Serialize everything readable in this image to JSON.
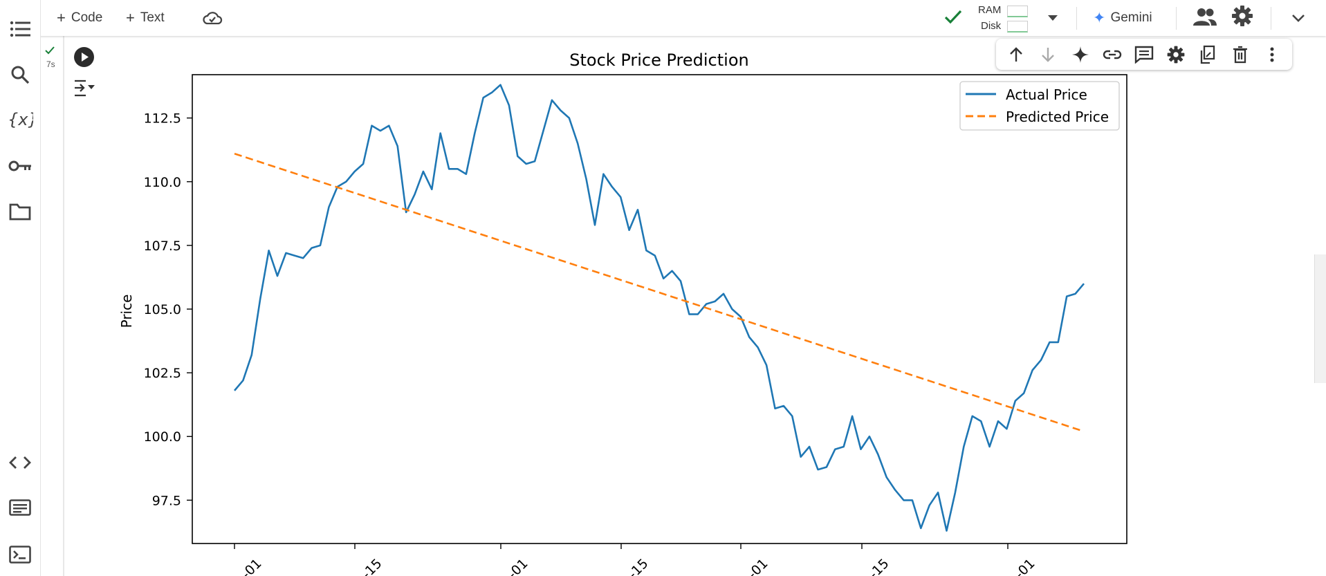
{
  "toolbar": {
    "add_code_label": "Code",
    "add_text_label": "Text",
    "ram_label": "RAM",
    "disk_label": "Disk",
    "gemini_label": "Gemini"
  },
  "cell": {
    "run_time": "7s"
  },
  "icons": {
    "rail": [
      "toc-icon",
      "search-icon",
      "variables-icon",
      "key-icon",
      "folder-icon",
      "code-snippets-icon",
      "command-palette-icon",
      "terminal-icon"
    ],
    "cell_toolbar": [
      "arrow-up-icon",
      "arrow-down-icon",
      "sparkle-icon",
      "link-icon",
      "comment-icon",
      "gear-icon",
      "mirror-cell-icon",
      "trash-icon",
      "more-vert-icon"
    ]
  },
  "colors": {
    "accent_check": "#188038",
    "actual_line": "#1f77b4",
    "predicted_line": "#ff7f0e",
    "gemini": "#4285f4"
  },
  "chart_data": {
    "type": "line",
    "title": "Stock Price Prediction",
    "xlabel": "",
    "ylabel": "Price",
    "ylim": [
      95.8,
      114.2
    ],
    "yticks": [
      "97.5",
      "100.0",
      "102.5",
      "105.0",
      "107.5",
      "110.0",
      "112.5"
    ],
    "xticks": [
      "-01",
      "-15",
      "-01",
      "-15",
      "-01",
      "-15",
      "-01"
    ],
    "legend_position": "upper right",
    "series": [
      {
        "name": "Actual Price",
        "style": "solid",
        "values": [
          101.8,
          102.2,
          103.2,
          105.4,
          107.3,
          106.3,
          107.2,
          107.1,
          107.0,
          107.4,
          107.5,
          109.0,
          109.8,
          110.0,
          110.4,
          110.7,
          112.2,
          112.0,
          112.2,
          111.4,
          108.8,
          109.5,
          110.4,
          109.7,
          111.9,
          110.5,
          110.5,
          110.3,
          111.9,
          113.3,
          113.5,
          113.8,
          113.0,
          111.0,
          110.7,
          110.8,
          112.0,
          113.2,
          112.8,
          112.5,
          111.5,
          110.1,
          108.3,
          110.3,
          109.8,
          109.4,
          108.1,
          108.9,
          107.3,
          107.1,
          106.2,
          106.5,
          106.1,
          104.8,
          104.8,
          105.2,
          105.3,
          105.6,
          105.0,
          104.7,
          103.9,
          103.5,
          102.8,
          101.1,
          101.2,
          100.8,
          99.2,
          99.6,
          98.7,
          98.8,
          99.5,
          99.6,
          100.8,
          99.5,
          100.0,
          99.3,
          98.4,
          97.9,
          97.5,
          97.5,
          96.4,
          97.3,
          97.8,
          96.3,
          97.8,
          99.6,
          100.8,
          100.6,
          99.6,
          100.6,
          100.3,
          101.4,
          101.7,
          102.6,
          103.0,
          103.7,
          103.7,
          105.5,
          105.6,
          106.0
        ]
      },
      {
        "name": "Predicted Price",
        "style": "dashed",
        "start": 111.1,
        "end": 100.2
      }
    ]
  }
}
